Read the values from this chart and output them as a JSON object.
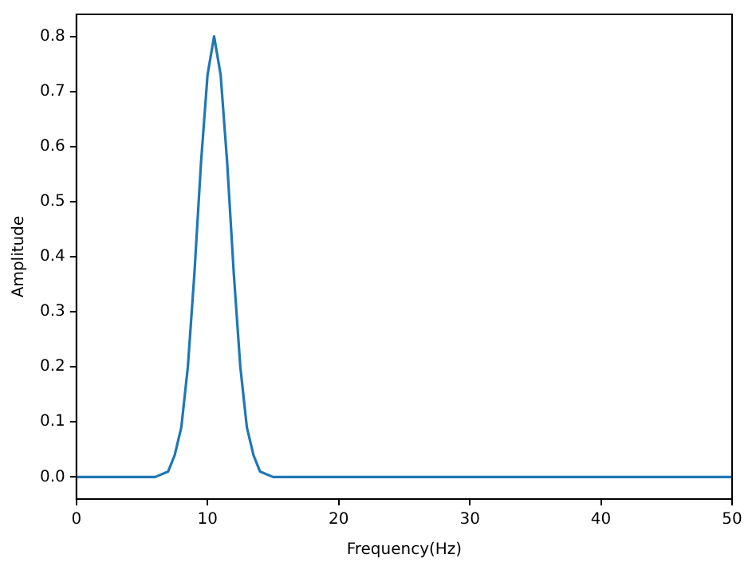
{
  "chart_data": {
    "type": "line",
    "xlabel": "Frequency(Hz)",
    "ylabel": "Amplitude",
    "x": [
      0,
      5,
      6,
      7,
      7.5,
      8,
      8.5,
      9,
      9.5,
      10,
      10.5,
      11,
      11.5,
      12,
      12.5,
      13,
      13.5,
      14,
      15,
      20,
      30,
      40,
      50
    ],
    "series": [
      {
        "color": "#1f77b4",
        "values": [
          0,
          0,
          0,
          0.01,
          0.04,
          0.09,
          0.2,
          0.37,
          0.57,
          0.73,
          0.8,
          0.73,
          0.57,
          0.37,
          0.2,
          0.09,
          0.04,
          0.01,
          0,
          0,
          0,
          0,
          0
        ]
      }
    ],
    "xlim": [
      0,
      50
    ],
    "xticks": [
      0,
      10,
      20,
      30,
      40,
      50
    ],
    "ylim": [
      -0.04,
      0.84
    ],
    "yticks": [
      {
        "value": 0,
        "label": "0.0"
      },
      0.1,
      0.2,
      0.3,
      0.4,
      0.5,
      0.6,
      0.7,
      0.8
    ],
    "grid": false,
    "legend": false,
    "marker": "none",
    "line_style": "solid"
  }
}
